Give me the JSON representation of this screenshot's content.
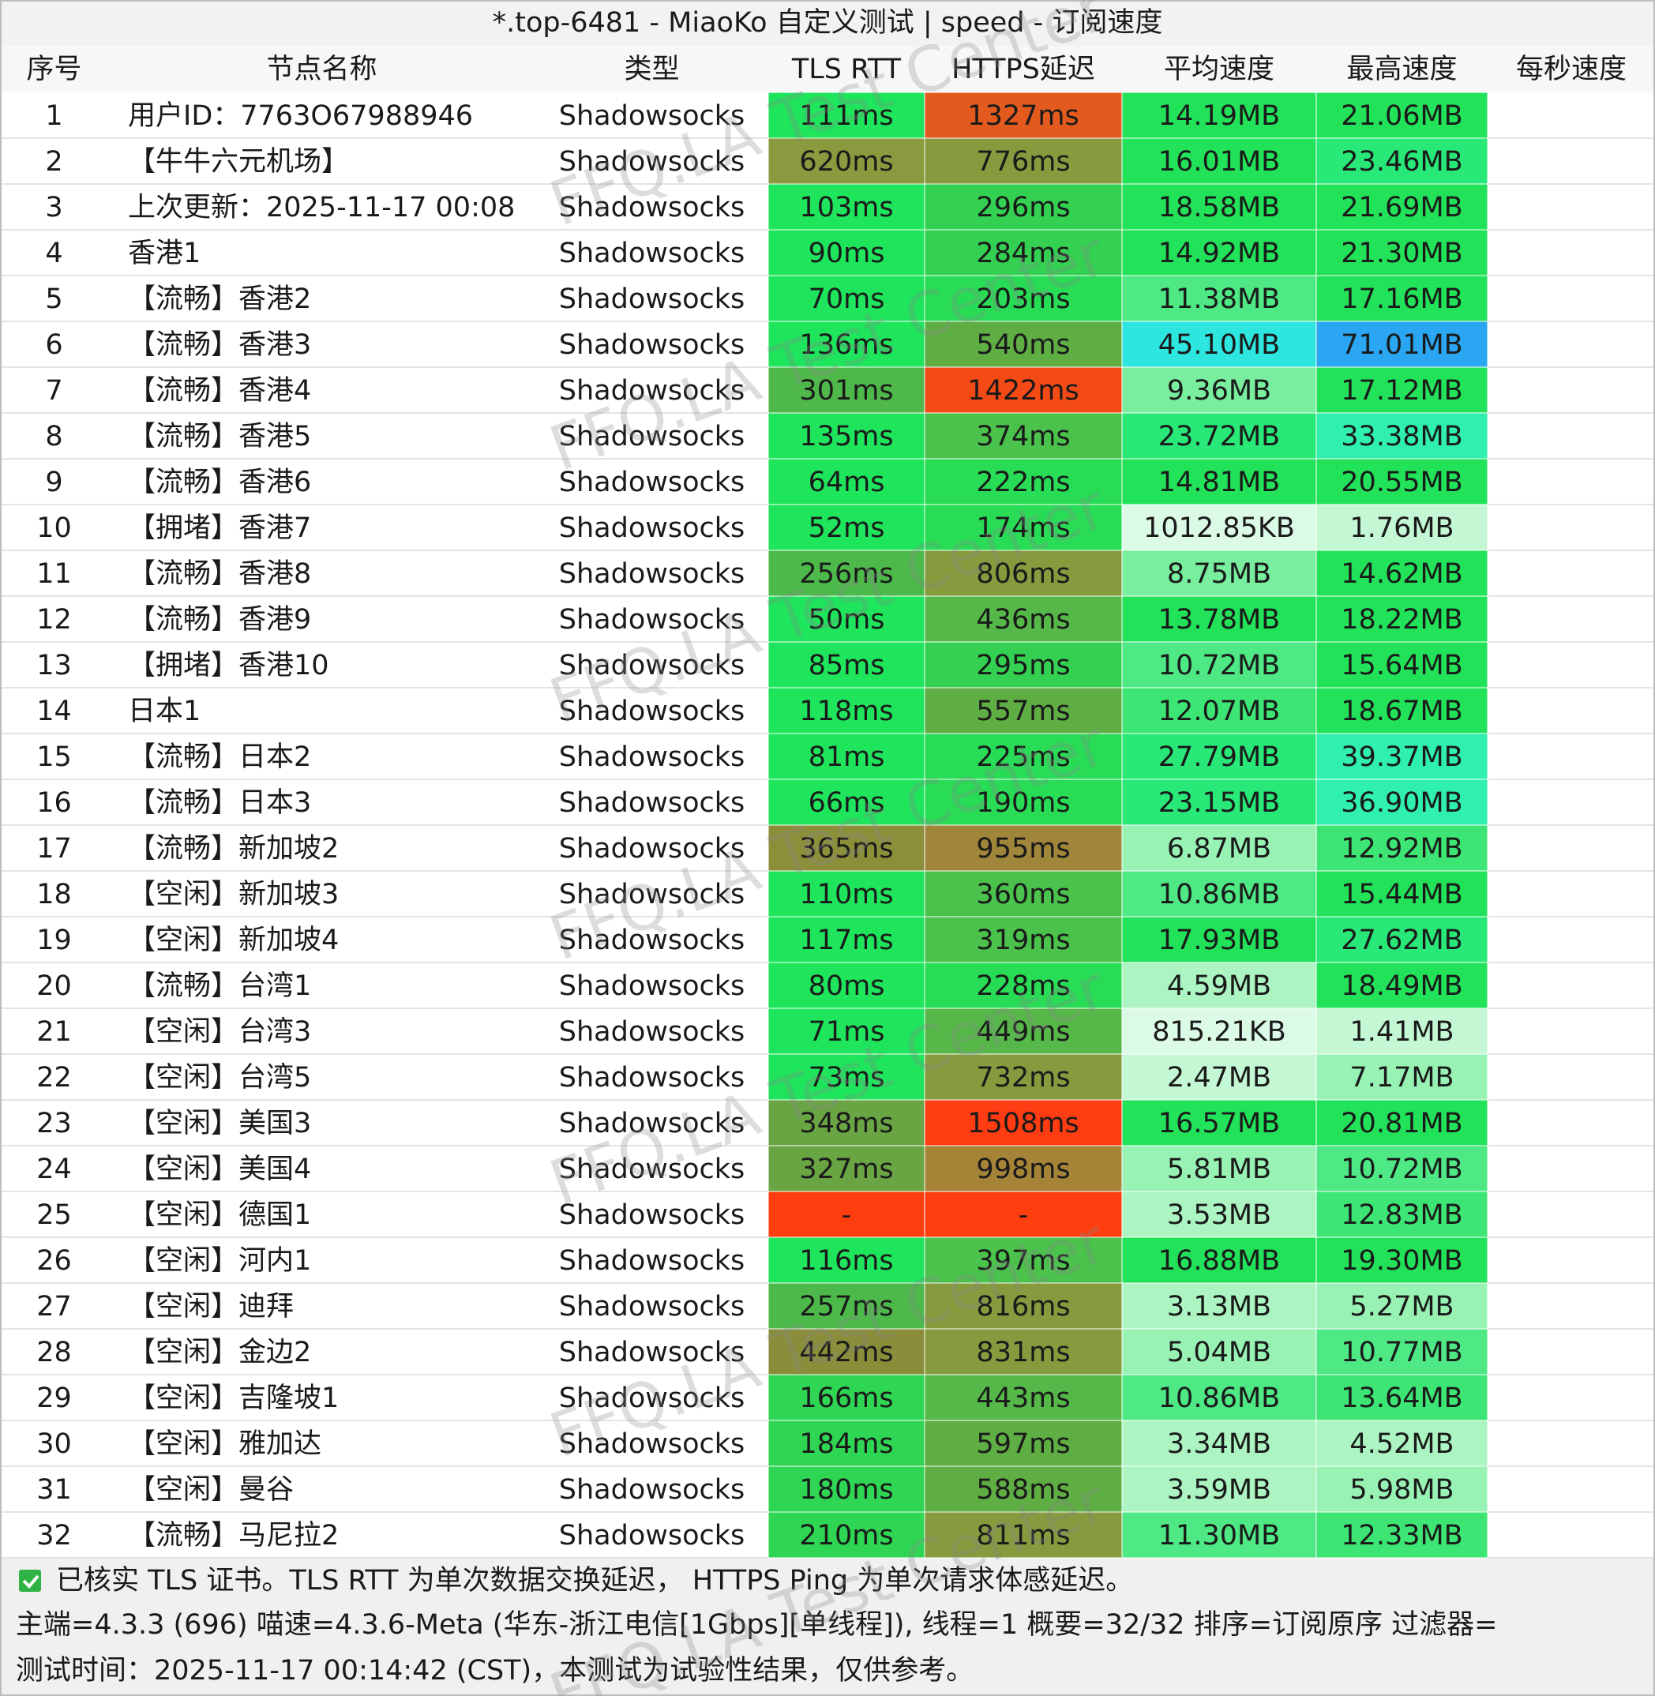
{
  "title": "*.top-6481 - MiaoKo 自定义测试 | speed - 订阅速度",
  "table": {
    "headers": [
      "序号",
      "节点名称",
      "类型",
      "TLS RTT",
      "HTTPS延迟",
      "平均速度",
      "最高速度",
      "每秒速度"
    ],
    "rows": [
      [
        1,
        "用户ID：7763O67988946",
        "Shadowsocks",
        "111ms",
        "1327ms",
        "14.19MB",
        "21.06MB"
      ],
      [
        2,
        "【牛牛六元机场】",
        "Shadowsocks",
        "620ms",
        "776ms",
        "16.01MB",
        "23.46MB"
      ],
      [
        3,
        "上次更新：2025-11-17 00:08",
        "Shadowsocks",
        "103ms",
        "296ms",
        "18.58MB",
        "21.69MB"
      ],
      [
        4,
        "香港1",
        "Shadowsocks",
        "90ms",
        "284ms",
        "14.92MB",
        "21.30MB"
      ],
      [
        5,
        "【流畅】香港2",
        "Shadowsocks",
        "70ms",
        "203ms",
        "11.38MB",
        "17.16MB"
      ],
      [
        6,
        "【流畅】香港3",
        "Shadowsocks",
        "136ms",
        "540ms",
        "45.10MB",
        "71.01MB"
      ],
      [
        7,
        "【流畅】香港4",
        "Shadowsocks",
        "301ms",
        "1422ms",
        "9.36MB",
        "17.12MB"
      ],
      [
        8,
        "【流畅】香港5",
        "Shadowsocks",
        "135ms",
        "374ms",
        "23.72MB",
        "33.38MB"
      ],
      [
        9,
        "【流畅】香港6",
        "Shadowsocks",
        "64ms",
        "222ms",
        "14.81MB",
        "20.55MB"
      ],
      [
        10,
        "【拥堵】香港7",
        "Shadowsocks",
        "52ms",
        "174ms",
        "1012.85KB",
        "1.76MB"
      ],
      [
        11,
        "【流畅】香港8",
        "Shadowsocks",
        "256ms",
        "806ms",
        "8.75MB",
        "14.62MB"
      ],
      [
        12,
        "【流畅】香港9",
        "Shadowsocks",
        "50ms",
        "436ms",
        "13.78MB",
        "18.22MB"
      ],
      [
        13,
        "【拥堵】香港10",
        "Shadowsocks",
        "85ms",
        "295ms",
        "10.72MB",
        "15.64MB"
      ],
      [
        14,
        "日本1",
        "Shadowsocks",
        "118ms",
        "557ms",
        "12.07MB",
        "18.67MB"
      ],
      [
        15,
        "【流畅】日本2",
        "Shadowsocks",
        "81ms",
        "225ms",
        "27.79MB",
        "39.37MB"
      ],
      [
        16,
        "【流畅】日本3",
        "Shadowsocks",
        "66ms",
        "190ms",
        "23.15MB",
        "36.90MB"
      ],
      [
        17,
        "【流畅】新加坡2",
        "Shadowsocks",
        "365ms",
        "955ms",
        "6.87MB",
        "12.92MB"
      ],
      [
        18,
        "【空闲】新加坡3",
        "Shadowsocks",
        "110ms",
        "360ms",
        "10.86MB",
        "15.44MB"
      ],
      [
        19,
        "【空闲】新加坡4",
        "Shadowsocks",
        "117ms",
        "319ms",
        "17.93MB",
        "27.62MB"
      ],
      [
        20,
        "【流畅】台湾1",
        "Shadowsocks",
        "80ms",
        "228ms",
        "4.59MB",
        "18.49MB"
      ],
      [
        21,
        "【空闲】台湾3",
        "Shadowsocks",
        "71ms",
        "449ms",
        "815.21KB",
        "1.41MB"
      ],
      [
        22,
        "【空闲】台湾5",
        "Shadowsocks",
        "73ms",
        "732ms",
        "2.47MB",
        "7.17MB"
      ],
      [
        23,
        "【空闲】美国3",
        "Shadowsocks",
        "348ms",
        "1508ms",
        "16.57MB",
        "20.81MB"
      ],
      [
        24,
        "【空闲】美国4",
        "Shadowsocks",
        "327ms",
        "998ms",
        "5.81MB",
        "10.72MB"
      ],
      [
        25,
        "【空闲】德国1",
        "Shadowsocks",
        "-",
        "-",
        "3.53MB",
        "12.83MB"
      ],
      [
        26,
        "【空闲】河内1",
        "Shadowsocks",
        "116ms",
        "397ms",
        "16.88MB",
        "19.30MB"
      ],
      [
        27,
        "【空闲】迪拜",
        "Shadowsocks",
        "257ms",
        "816ms",
        "3.13MB",
        "5.27MB"
      ],
      [
        28,
        "【空闲】金边2",
        "Shadowsocks",
        "442ms",
        "831ms",
        "5.04MB",
        "10.77MB"
      ],
      [
        29,
        "【空闲】吉隆坡1",
        "Shadowsocks",
        "166ms",
        "443ms",
        "10.86MB",
        "13.64MB"
      ],
      [
        30,
        "【空闲】雅加达",
        "Shadowsocks",
        "184ms",
        "597ms",
        "3.34MB",
        "4.52MB"
      ],
      [
        31,
        "【空闲】曼谷",
        "Shadowsocks",
        "180ms",
        "588ms",
        "3.59MB",
        "5.98MB"
      ],
      [
        32,
        "【流畅】马尼拉2",
        "Shadowsocks",
        "210ms",
        "811ms",
        "11.30MB",
        "12.33MB"
      ]
    ],
    "cell_colors": [
      [
        "#1ee55c",
        "#e35a1e",
        "#22e25a",
        "#22e25a"
      ],
      [
        "#8a9a3e",
        "#869a3e",
        "#22e25a",
        "#28e878"
      ],
      [
        "#1ee55c",
        "#33d052",
        "#22e25a",
        "#22e25a"
      ],
      [
        "#1ee55c",
        "#33d052",
        "#22e25a",
        "#22e25a"
      ],
      [
        "#1ee55c",
        "#28dc56",
        "#4ee884",
        "#22e25a"
      ],
      [
        "#1ee55c",
        "#5fae44",
        "#2ee6e0",
        "#2aa6f2"
      ],
      [
        "#4fb84a",
        "#f44a16",
        "#78ee9e",
        "#22e25a"
      ],
      [
        "#1ee55c",
        "#4ac24c",
        "#28e878",
        "#30f0b0"
      ],
      [
        "#1ee55c",
        "#28dc56",
        "#22e25a",
        "#22e25a"
      ],
      [
        "#1ee55c",
        "#28dc56",
        "#dcfbe6",
        "#c4f8d4"
      ],
      [
        "#4cb94a",
        "#869a3e",
        "#78ee9e",
        "#22e25a"
      ],
      [
        "#1ee55c",
        "#55b848",
        "#22e25a",
        "#22e25a"
      ],
      [
        "#1ee55c",
        "#33d052",
        "#4ee884",
        "#22e25a"
      ],
      [
        "#1ee55c",
        "#5fae44",
        "#3de674",
        "#22e25a"
      ],
      [
        "#1ee55c",
        "#28dc56",
        "#28e878",
        "#30f0b0"
      ],
      [
        "#1ee55c",
        "#28dc56",
        "#28e878",
        "#30f0b0"
      ],
      [
        "#8b8f39",
        "#a0863a",
        "#98f2b4",
        "#3de674"
      ],
      [
        "#1ee55c",
        "#4ac24c",
        "#4ee884",
        "#22e25a"
      ],
      [
        "#1ee55c",
        "#4ac24c",
        "#22e25a",
        "#28e878"
      ],
      [
        "#1ee55c",
        "#28dc56",
        "#acf5c2",
        "#22e25a"
      ],
      [
        "#1ee55c",
        "#55b848",
        "#dcfbe6",
        "#c4f8d4"
      ],
      [
        "#1ee55c",
        "#869a3e",
        "#c4f8d4",
        "#98f2b4"
      ],
      [
        "#6aa544",
        "#ff3c12",
        "#22e25a",
        "#22e25a"
      ],
      [
        "#6aa544",
        "#a58438",
        "#98f2b4",
        "#4ee884"
      ],
      [
        "#ff3e10",
        "#ff3e10",
        "#acf5c2",
        "#3de674"
      ],
      [
        "#1ee55c",
        "#4ac24c",
        "#22e25a",
        "#22e25a"
      ],
      [
        "#4cb94a",
        "#869a3e",
        "#acf5c2",
        "#98f2b4"
      ],
      [
        "#8a8e3a",
        "#869a3e",
        "#98f2b4",
        "#4ee884"
      ],
      [
        "#2fd653",
        "#55b848",
        "#4ee884",
        "#3de674"
      ],
      [
        "#2fd653",
        "#5fae44",
        "#acf5c2",
        "#acf5c2"
      ],
      [
        "#2fd653",
        "#5fae44",
        "#acf5c2",
        "#98f2b4"
      ],
      [
        "#2fd653",
        "#869a3e",
        "#4ee884",
        "#3de674"
      ]
    ]
  },
  "footer": {
    "check_note": "已核实 TLS 证书。TLS RTT 为单次数据交换延迟， HTTPS Ping 为单次请求体感延迟。",
    "summary": "主端=4.3.3 (696) 喵速=4.3.6-Meta (华东-浙江电信[1Gbps][单线程]), 线程=1 概要=32/32 排序=订阅原序 过滤器=",
    "test_time": "测试时间：2025-11-17 00:14:42 (CST)，本测试为试验性结果，仅供参考。"
  },
  "watermark": "FFQ.LA Test Center"
}
